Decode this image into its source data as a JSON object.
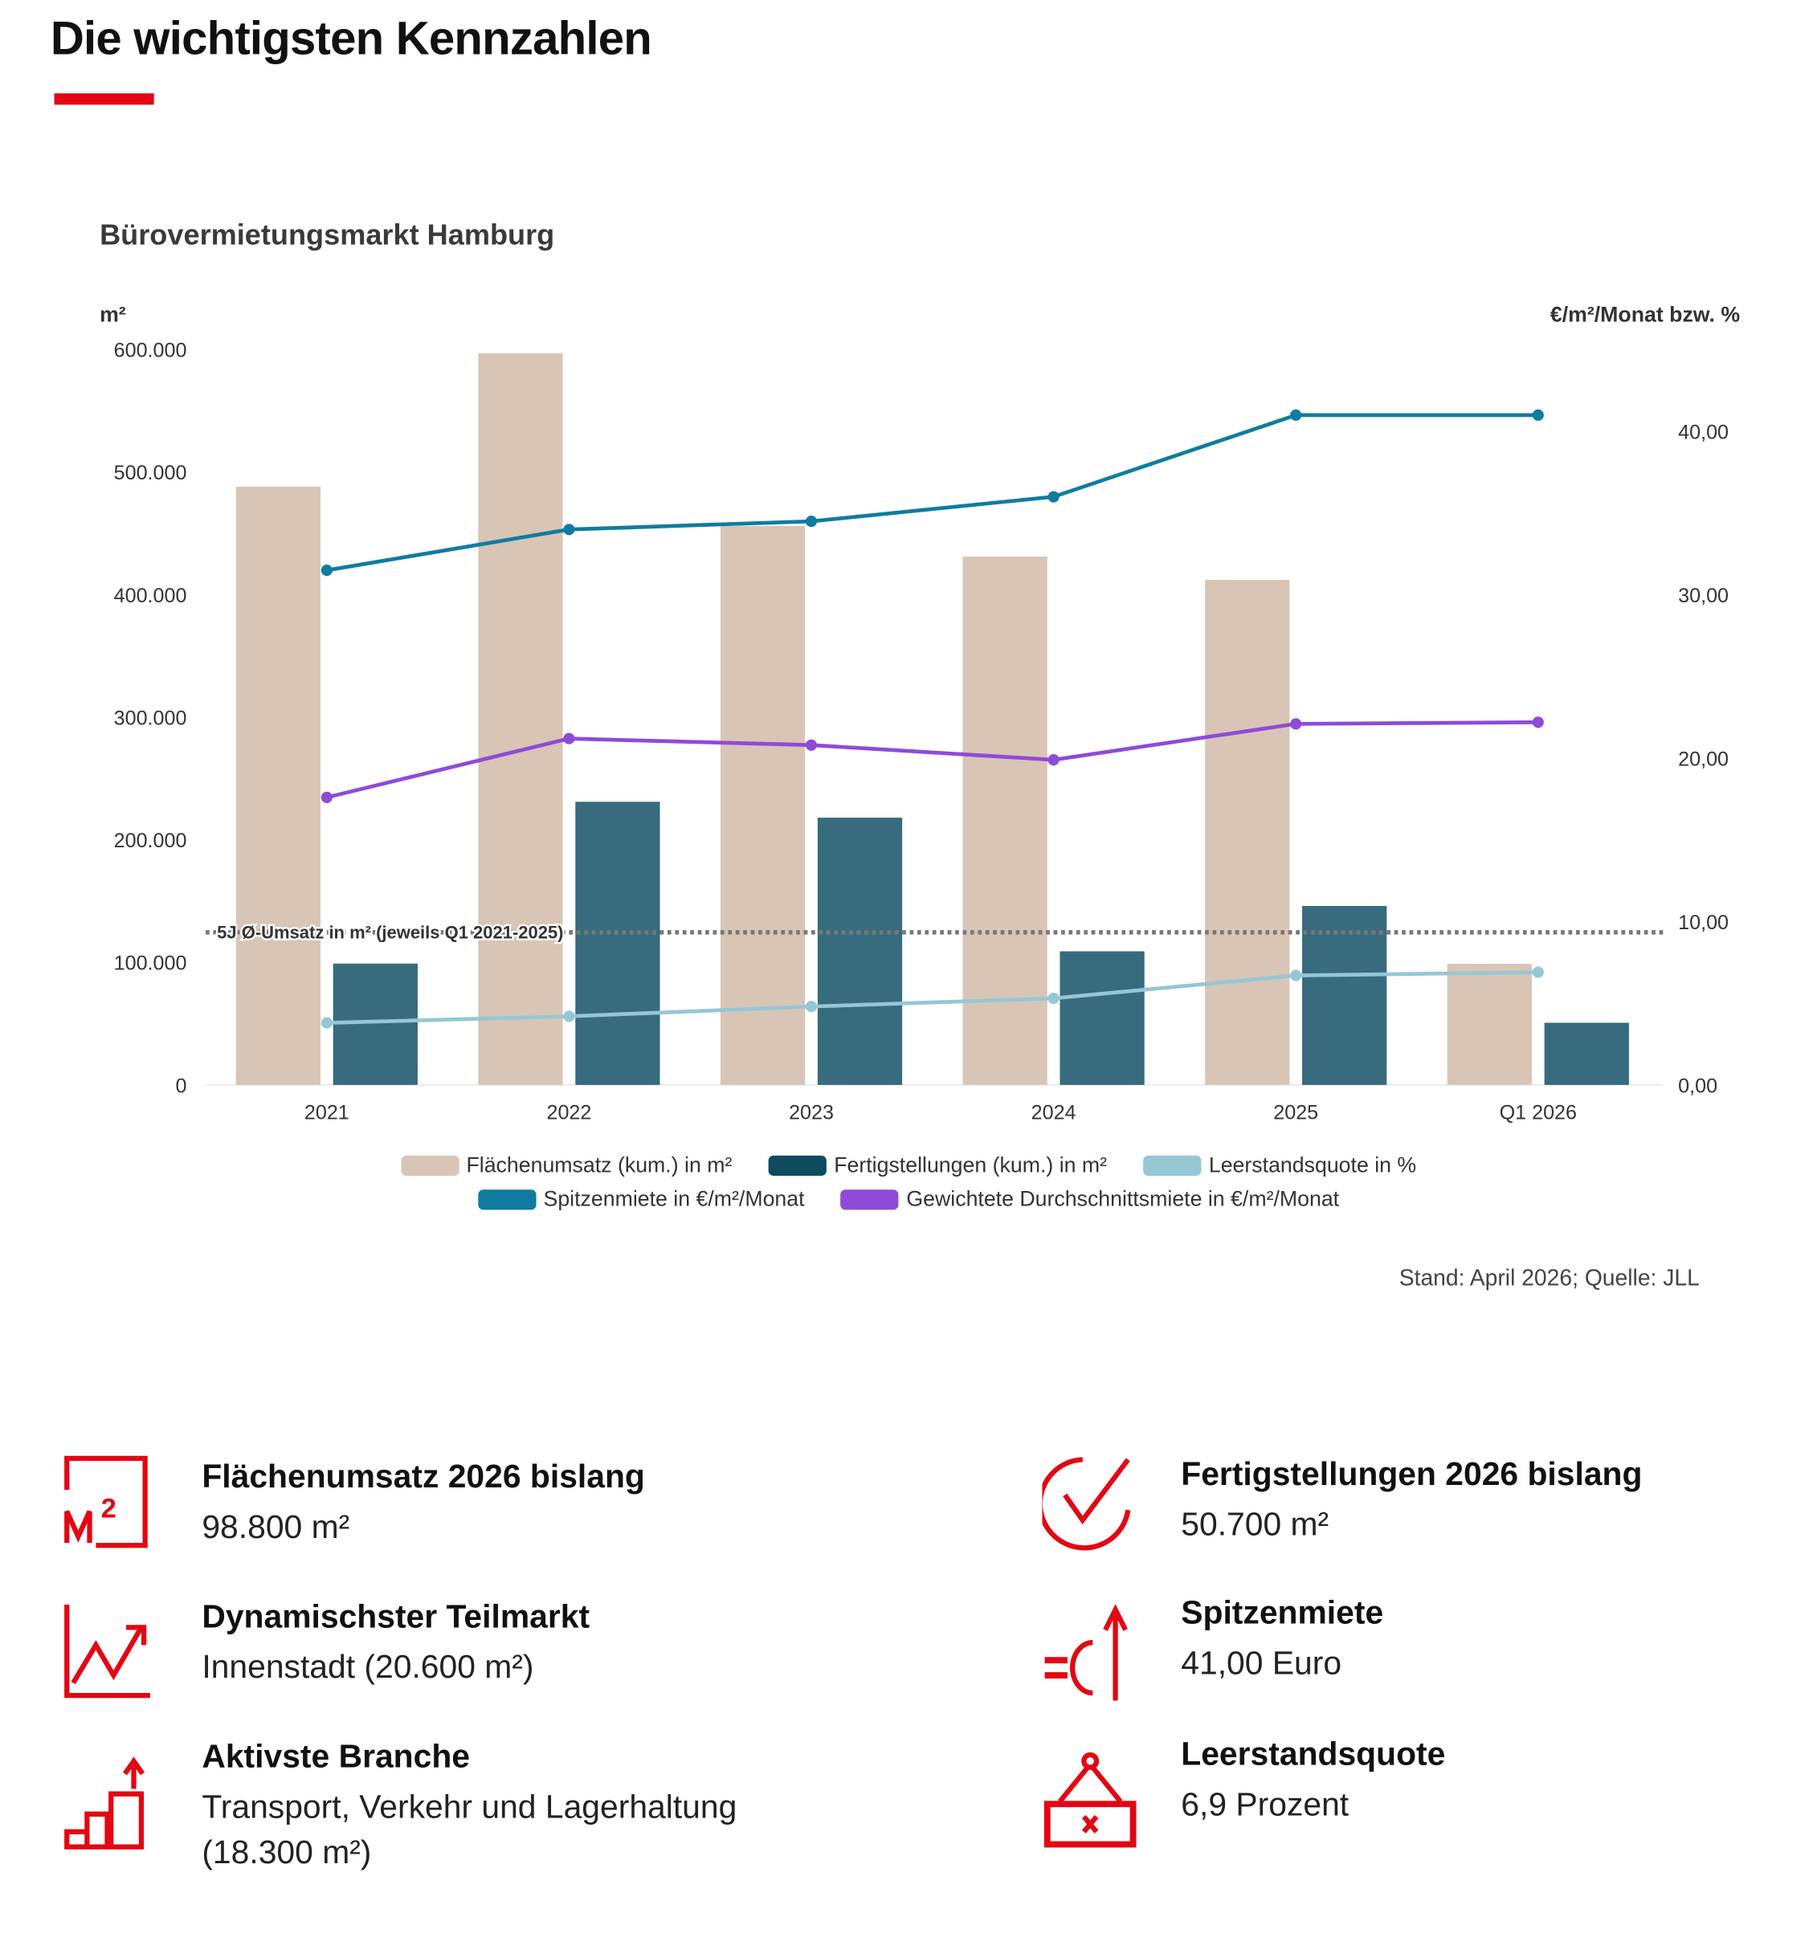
{
  "page_title": "Die wichtigsten Kennzahlen",
  "colors": {
    "accent": "#e30613",
    "beige": "#d9c5b5",
    "dark": "#376b7d",
    "light": "#95c7d5",
    "spitze": "#0f7ca0",
    "purple": "#8f4ad9",
    "legend_dark": "#0d4b5e"
  },
  "chart_data": {
    "type": "bar",
    "title": "Bürovermietungsmarkt Hamburg",
    "ylabel": "m²",
    "y2label": "€/m²/Monat bzw. %",
    "ylim": [
      0,
      600000
    ],
    "y2lim": [
      0,
      45
    ],
    "yticks": [
      "0",
      "100.000",
      "200.000",
      "300.000",
      "400.000",
      "500.000",
      "600.000"
    ],
    "yticks_values": [
      0,
      100000,
      200000,
      300000,
      400000,
      500000,
      600000
    ],
    "y2ticks": [
      "0,00",
      "10,00",
      "20,00",
      "30,00",
      "40,00"
    ],
    "y2ticks_values": [
      0,
      10,
      20,
      30,
      40
    ],
    "categories": [
      "2021",
      "2022",
      "2023",
      "2024",
      "2025",
      "Q1 2026"
    ],
    "series": [
      {
        "name": "Flächenumsatz (kum.) in m²",
        "type": "bar",
        "axis": "left",
        "values": [
          488000,
          597000,
          456000,
          431000,
          412000,
          98800
        ]
      },
      {
        "name": "Fertigstellungen (kum.) in m²",
        "type": "bar",
        "axis": "left",
        "values": [
          99000,
          231000,
          218000,
          109000,
          146000,
          50700
        ]
      },
      {
        "name": "Leerstandsquote in %",
        "type": "line",
        "axis": "right",
        "values": [
          3.8,
          4.2,
          4.8,
          5.3,
          6.7,
          6.9
        ]
      },
      {
        "name": "Spitzenmiete in €/m²/Monat",
        "type": "line",
        "axis": "right",
        "values": [
          31.5,
          34.0,
          34.5,
          36.0,
          41.0,
          41.0
        ]
      },
      {
        "name": "Gewichtete Durchschnittsmiete in €/m²/Monat",
        "type": "line",
        "axis": "right",
        "values": [
          17.6,
          21.2,
          20.8,
          19.9,
          22.1,
          22.2
        ]
      }
    ],
    "reference_line": {
      "label": "5J Ø-Umsatz in m² (jeweils Q1 2021-2025)",
      "value": 124500
    },
    "legend_position": "bottom",
    "source": "Stand: April 2026; Quelle: JLL"
  },
  "kpis": [
    {
      "icon": "m2-icon",
      "title": "Flächenumsatz 2026 bislang",
      "value": "98.800 m²"
    },
    {
      "icon": "check-icon",
      "title": "Fertigstellungen 2026 bislang",
      "value": "50.700 m²"
    },
    {
      "icon": "trend-up-icon",
      "title": "Dynamischster Teilmarkt",
      "value": "Innenstadt (20.600 m²)"
    },
    {
      "icon": "euro-up-icon",
      "title": "Spitzenmiete",
      "value": "41,00 Euro"
    },
    {
      "icon": "steps-up-icon",
      "title": "Aktivste Branche",
      "value": "Transport, Verkehr und Lagerhaltung (18.300 m²)"
    },
    {
      "icon": "vacancy-sign-icon",
      "title": "Leerstandsquote",
      "value": "6,9 Prozent"
    }
  ]
}
